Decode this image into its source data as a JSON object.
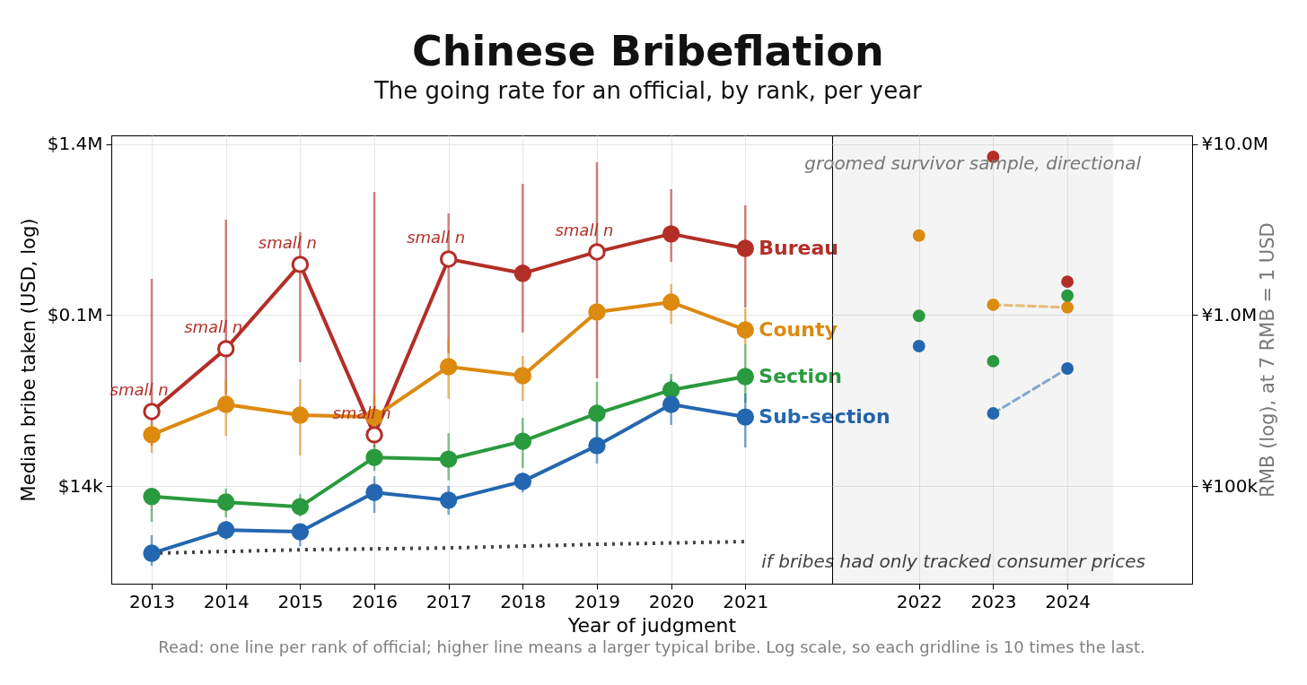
{
  "chart_data": [
    {
      "type": "line",
      "title": "Chinese Bribeflation",
      "subtitle": "The going rate for an official, by rank, per year",
      "xlabel": "Year of judgment",
      "ylabel": "Median bribe taken (USD, log)",
      "x": [
        2013,
        2014,
        2015,
        2016,
        2017,
        2018,
        2019,
        2020,
        2021
      ],
      "xlim": [
        2012.455,
        2022.17
      ],
      "xticks": [
        2013,
        2014,
        2015,
        2016,
        2017,
        2018,
        2019,
        2020,
        2021
      ],
      "ylim": [
        3830,
        1610000
      ],
      "yticks": [
        {
          "value": 14285.7,
          "label": "$14k"
        },
        {
          "value": 142857,
          "label": "$0.1M"
        },
        {
          "value": 1428571,
          "label": "$1.4M"
        }
      ],
      "log": "y",
      "grid": true,
      "legend": false,
      "marker": "circle",
      "line_style": "solid",
      "series": [
        {
          "name": "Bureau",
          "color": "#b22f27",
          "values": [
            39000,
            90900,
            283000,
            28500,
            304000,
            251000,
            335000,
            427000,
            351000
          ],
          "errors": [
            [
              24600,
              233000
            ],
            [
              49000,
              517000
            ],
            [
              75700,
              437000
            ],
            [
              24000,
              753000
            ],
            [
              85400,
              563000
            ],
            [
              112900,
              839000
            ],
            [
              60900,
              1122000
            ],
            [
              293000,
              780000
            ],
            [
              158000,
              628000
            ]
          ]
        },
        {
          "name": "County",
          "color": "#dc8a10",
          "values": [
            28500,
            42900,
            37100,
            36200,
            71300,
            63200,
            149000,
            170000,
            117000
          ],
          "errors": [
            [
              22300,
              32900
            ],
            [
              28100,
              59500
            ],
            [
              21500,
              60200
            ],
            [
              30600,
              49600
            ],
            [
              46100,
              105000
            ],
            [
              45000,
              82400
            ],
            null,
            [
              127000,
              217000
            ],
            [
              96400,
              156000
            ]
          ]
        },
        {
          "name": "Section",
          "color": "#2a9a3e",
          "values": [
            12400,
            11500,
            10800,
            21000,
            20500,
            26100,
            38000,
            52100,
            62400
          ],
          "errors": [
            [
              8810,
              13900
            ],
            [
              9360,
              13800
            ],
            [
              9480,
              12800
            ],
            [
              17500,
              24900
            ],
            [
              15400,
              29100
            ],
            [
              18200,
              35800
            ],
            [
              27100,
              58100
            ],
            [
              48500,
              64700
            ],
            [
              44000,
              96400
            ]
          ]
        },
        {
          "name": "Sub-section",
          "color": "#2467b0",
          "values": [
            5770,
            7900,
            7710,
            13100,
            11800,
            15200,
            24600,
            42900,
            36200
          ],
          "errors": [
            [
              4870,
              7350
            ],
            [
              6920,
              8920
            ],
            [
              6350,
              8600
            ],
            [
              9940,
              16300
            ],
            [
              9700,
              14300
            ],
            [
              13100,
              17100
            ],
            [
              19300,
              33700
            ],
            [
              32500,
              60000
            ],
            [
              24000,
              49600
            ]
          ]
        },
        {
          "name": "if bribes had only tracked consumer prices",
          "color": "#444444",
          "x": [
            2013,
            2015,
            2017,
            2019,
            2021
          ],
          "values": [
            5770,
            6050,
            6200,
            6510,
            6750
          ],
          "line_style": "dotted",
          "marker": "none"
        }
      ],
      "annotations": [
        {
          "text": "small n",
          "x": 2013,
          "y": 39000
        },
        {
          "text": "small n",
          "x": 2014,
          "y": 90900
        },
        {
          "text": "small n",
          "x": 2015,
          "y": 283000
        },
        {
          "text": "small n",
          "x": 2016,
          "y": 28500
        },
        {
          "text": "small n",
          "x": 2017,
          "y": 304000
        },
        {
          "text": "small n",
          "x": 2019,
          "y": 335000
        },
        "Read: one line per rank of official; higher line means a larger typical bribe. Log scale, so each gridline is 10 times the last."
      ]
    },
    {
      "type": "scatter",
      "x": [
        2022,
        2023,
        2024
      ],
      "xlim": [
        2020.83,
        2025.68
      ],
      "xticks": [
        2022,
        2023,
        2024
      ],
      "y2lim": [
        26800,
        11270000
      ],
      "y2ticks": [
        {
          "value": 100000,
          "label": "¥100k"
        },
        {
          "value": 1000000,
          "label": "¥1.0M"
        },
        {
          "value": 10000000,
          "label": "¥10.0M"
        }
      ],
      "y2label": "RMB (log), at 7 RMB = 1 USD",
      "log": "y2",
      "grid": true,
      "legend": false,
      "marker": "circle",
      "bands": [
        {
          "axis": "x",
          "from": 2020.83,
          "to": 2024.62,
          "label": "groomed survivor sample, directional",
          "color": "#f4f4f4"
        }
      ],
      "series": [
        {
          "color": "#b22f27",
          "axis": "y2",
          "x": [
            2023,
            2024
          ],
          "values": [
            8440000,
            1570000
          ]
        },
        {
          "color": "#dc8a10",
          "axis": "y2",
          "x": [
            2022
          ],
          "values": [
            2920000
          ]
        },
        {
          "type": "line",
          "line_style": "dashed",
          "color": "#dc8a10",
          "axis": "y2",
          "x": [
            2023,
            2024
          ],
          "values": [
            1150000,
            1110000
          ]
        },
        {
          "color": "#2a9a3e",
          "axis": "y2",
          "values": [
            990000,
            537000,
            1300000
          ]
        },
        {
          "color": "#2467b0",
          "axis": "y2",
          "x": [
            2022
          ],
          "values": [
            659000
          ]
        },
        {
          "type": "line",
          "line_style": "dashed",
          "color": "#2467b0",
          "axis": "y2",
          "x": [
            2023,
            2024
          ],
          "values": [
            266000,
            487000
          ]
        }
      ]
    }
  ]
}
